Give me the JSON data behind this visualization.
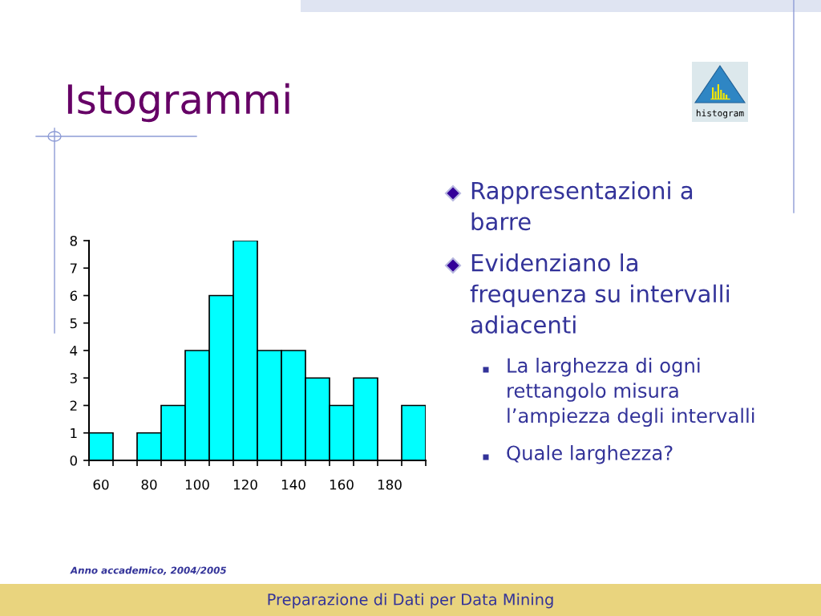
{
  "chart_data": {
    "type": "histogram",
    "title": "Istogrammi",
    "bins": [
      55,
      65,
      75,
      85,
      95,
      105,
      115,
      125,
      135,
      145,
      155,
      165,
      175,
      185,
      195
    ],
    "values": [
      1,
      0,
      1,
      2,
      4,
      6,
      8,
      4,
      4,
      3,
      2,
      3,
      0,
      2
    ],
    "color": "#00ffff",
    "xlim": [
      55,
      195
    ],
    "xticks": [
      {
        "value": 55,
        "label": null
      },
      {
        "value": 60,
        "label": "60"
      },
      {
        "value": 65,
        "label": null
      },
      {
        "value": 75,
        "label": null
      },
      {
        "value": 80,
        "label": "80"
      },
      {
        "value": 85,
        "label": null
      },
      {
        "value": 95,
        "label": null
      },
      {
        "value": 100,
        "label": "100"
      },
      {
        "value": 105,
        "label": null
      },
      {
        "value": 115,
        "label": null
      },
      {
        "value": 120,
        "label": "120"
      },
      {
        "value": 125,
        "label": null
      },
      {
        "value": 135,
        "label": null
      },
      {
        "value": 140,
        "label": "140"
      },
      {
        "value": 145,
        "label": null
      },
      {
        "value": 155,
        "label": null
      },
      {
        "value": 160,
        "label": "160"
      },
      {
        "value": 165,
        "label": null
      },
      {
        "value": 175,
        "label": null
      },
      {
        "value": 180,
        "label": "180"
      },
      {
        "value": 185,
        "label": null
      },
      {
        "value": 195,
        "label": null
      }
    ],
    "ylim": [
      0,
      8
    ],
    "yticks": [
      0,
      1,
      2,
      3,
      4,
      5,
      6,
      7,
      8
    ],
    "annotations": [
      "Rappresentazioni a\nbarre",
      "Evidenziano la\nfrequenza su intervalli\nadiacenti",
      "La larghezza di ogni\nrettangolo misura\nl’ampiezza degli intervalli",
      "Quale larghezza?",
      "histogram",
      "Anno accademico, 2004/2005",
      "Preparazione di Dati per Data Mining"
    ]
  }
}
